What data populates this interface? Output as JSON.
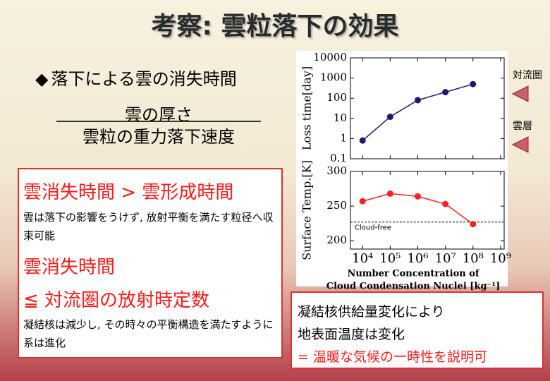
{
  "title": "考察: 雲粒落下の効果",
  "bullet": "落下による雲の消失時間",
  "fraction": {
    "numerator": "雲の厚さ",
    "denominator": "雲粒の重力落下速度"
  },
  "box": [
    "雲消失時間 > 雲形成時間",
    "雲は落下の影響をうけず, 放射平衡を満たす粒径へ収束可能",
    "雲消失時間",
    "≦ 対流圏の放射時定数",
    "凝結核は減少し, その時々の平衡構造を満たすように系は進化"
  ],
  "side_labels": [
    "対流圏",
    "雲層"
  ],
  "conclusion": [
    "凝結核供給量変化により",
    "地表面温度は変化",
    "= 温暖な気候の一時性を説明可"
  ],
  "chart_data": [
    {
      "type": "line",
      "ylabel": "Loss time[day]",
      "xlog": true,
      "ylog": true,
      "x": [
        10000,
        100000,
        1000000,
        10000000,
        100000000
      ],
      "values": [
        0.8,
        12,
        80,
        200,
        500
      ],
      "color": "#1a1a6e",
      "xlim": [
        3630,
        1350000000
      ],
      "ylim": [
        0.1,
        10000
      ],
      "yticks": [
        0.1,
        1,
        10,
        100,
        1000,
        10000
      ]
    },
    {
      "type": "line",
      "ylabel": "Surface Temp.[K]",
      "xlog": true,
      "x": [
        10000,
        100000,
        1000000,
        10000000,
        100000000
      ],
      "values": [
        257,
        268,
        264,
        253,
        224
      ],
      "color": "#ff2020",
      "xlim": [
        3630,
        1350000000
      ],
      "ylim": [
        188,
        300
      ],
      "yticks": [
        200,
        250,
        300
      ],
      "xticks": [
        {
          "value": 10000,
          "label": "10⁴"
        },
        {
          "value": 100000,
          "label": "10⁵"
        },
        {
          "value": 1000000,
          "label": "10⁶"
        },
        {
          "value": 10000000,
          "label": "10⁷"
        },
        {
          "value": 100000000,
          "label": "10⁸"
        },
        {
          "value": 1000000000,
          "label": "10⁹"
        }
      ],
      "xlabel": [
        "Number Concentration of",
        "Cloud Condensation Nuclei [kg⁻¹]"
      ],
      "annotations": [
        {
          "text": "Cloud-free",
          "y": 227
        }
      ]
    }
  ]
}
